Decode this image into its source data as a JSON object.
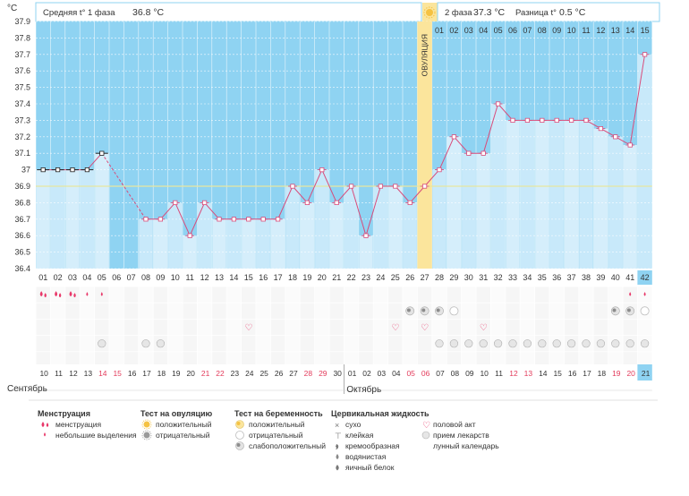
{
  "chart_data": {
    "type": "line",
    "ylabel": "°C",
    "ylim": [
      36.4,
      37.9
    ],
    "y_ticks": [
      "37.9",
      "37.8",
      "37.7",
      "37.6",
      "37.5",
      "37.4",
      "37.3",
      "37.2",
      "37.1",
      "37",
      "36.9",
      "36.8",
      "36.7",
      "36.6",
      "36.5",
      "36.4"
    ],
    "coverline": 36.9,
    "cycle_days": [
      "01",
      "02",
      "03",
      "04",
      "05",
      "06",
      "07",
      "08",
      "09",
      "10",
      "11",
      "12",
      "13",
      "14",
      "15",
      "16",
      "17",
      "18",
      "19",
      "20",
      "21",
      "22",
      "23",
      "24",
      "25",
      "26",
      "27",
      "28",
      "29",
      "30",
      "31",
      "32",
      "33",
      "34",
      "35",
      "36",
      "37",
      "38",
      "39",
      "40",
      "41",
      "42"
    ],
    "phase2_days": [
      "01",
      "02",
      "03",
      "04",
      "05",
      "06",
      "07",
      "08",
      "09",
      "10",
      "11",
      "12",
      "13",
      "14",
      "15"
    ],
    "ovulation_index": 26,
    "ovulation_label": "ОВУЛЯЦИЯ",
    "series": [
      {
        "values": [
          37.0,
          37.0,
          37.0,
          37.0,
          37.1,
          null,
          null,
          36.7,
          36.7,
          36.8,
          36.6,
          36.8,
          36.7,
          36.7,
          36.7,
          36.7,
          36.7,
          36.9,
          36.8,
          37.0,
          36.8,
          36.9,
          36.6,
          36.9,
          36.9,
          36.8,
          36.9,
          37.0,
          37.2,
          37.1,
          37.1,
          37.4,
          37.3,
          37.3,
          37.3,
          37.3,
          37.3,
          37.3,
          37.25,
          37.2,
          37.15,
          37.7
        ],
        "marker_types": [
          "open",
          "open",
          "open",
          "open",
          "open",
          null,
          null,
          "circle",
          "circle",
          "circle",
          "circle",
          "circle",
          "circle",
          "circle",
          "circle",
          "circle",
          "circle",
          "circle",
          "circle",
          "circle",
          "circle",
          "circle",
          "circle",
          "circle",
          "circle",
          "circle",
          "circle",
          "circle",
          "circle",
          "circle",
          "circle",
          "circle",
          "circle",
          "circle",
          "circle",
          "circle",
          "circle",
          "circle",
          "circle",
          "circle",
          "circle",
          "circle"
        ]
      }
    ],
    "dates_sep": [
      "10",
      "11",
      "12",
      "13",
      "14",
      "15",
      "16",
      "17",
      "18",
      "19",
      "20",
      "21",
      "22",
      "23",
      "24",
      "25",
      "26",
      "27",
      "28",
      "29",
      "30"
    ],
    "dates_oct": [
      "01",
      "02",
      "03",
      "04",
      "05",
      "06",
      "07",
      "08",
      "09",
      "10",
      "11",
      "12",
      "13",
      "14",
      "15",
      "16",
      "17",
      "18",
      "19",
      "20",
      "21"
    ],
    "weekend_dates_sep": [
      "14",
      "15",
      "21",
      "22",
      "28",
      "29"
    ],
    "weekend_dates_oct": [
      "05",
      "06",
      "12",
      "13",
      "19",
      "20"
    ],
    "month1": "Сентябрь",
    "month2": "Октябрь",
    "header_phase1_label": "Средняя t° 1 фаза",
    "header_phase1_value": "36.8 °C",
    "header_phase2_label": "2 фаза",
    "header_phase2_value": "37.3 °C",
    "header_diff_label": "Разница t°",
    "header_diff_value": "0.5 °C",
    "rows": {
      "menstruation": [
        2,
        2,
        2,
        1,
        1,
        0,
        0,
        0,
        0,
        0,
        0,
        0,
        0,
        0,
        0,
        0,
        0,
        0,
        0,
        0,
        0,
        0,
        0,
        0,
        0,
        0,
        0,
        0,
        0,
        0,
        0,
        0,
        0,
        0,
        0,
        0,
        0,
        0,
        0,
        0,
        1,
        1
      ],
      "pregnancy_test": [
        0,
        0,
        0,
        0,
        0,
        0,
        0,
        0,
        0,
        0,
        0,
        0,
        0,
        0,
        0,
        0,
        0,
        0,
        0,
        0,
        0,
        0,
        0,
        0,
        0,
        2,
        2,
        2,
        1,
        0,
        0,
        0,
        0,
        0,
        0,
        0,
        0,
        0,
        0,
        2,
        2,
        1
      ],
      "sex": [
        0,
        0,
        0,
        0,
        0,
        0,
        0,
        0,
        0,
        0,
        0,
        0,
        0,
        0,
        1,
        0,
        0,
        0,
        0,
        0,
        0,
        0,
        0,
        0,
        1,
        0,
        1,
        0,
        0,
        0,
        1,
        0,
        0,
        0,
        0,
        0,
        0,
        0,
        0,
        0,
        0,
        0
      ],
      "medication": [
        0,
        0,
        0,
        0,
        1,
        0,
        0,
        1,
        1,
        0,
        0,
        0,
        0,
        0,
        0,
        0,
        0,
        0,
        0,
        0,
        0,
        0,
        0,
        0,
        0,
        0,
        0,
        1,
        1,
        1,
        1,
        1,
        1,
        1,
        1,
        1,
        1,
        1,
        1,
        1,
        1,
        1
      ],
      "moon": [
        0,
        0,
        0,
        0,
        0,
        0,
        0,
        0,
        0,
        0,
        0,
        0,
        0,
        0,
        0,
        0,
        0,
        0,
        0,
        0,
        0,
        0,
        0,
        0,
        0,
        0,
        0,
        1,
        0,
        0,
        0,
        0,
        0,
        0,
        0,
        0,
        0,
        0,
        0,
        0,
        0,
        0
      ]
    },
    "highlight_index": 41
  },
  "legend": {
    "menstruation_title": "Менструация",
    "menstruation_items": [
      "менструация",
      "небольшие выделения"
    ],
    "ovulation_test_title": "Тест на овуляцию",
    "ovulation_test_items": [
      "положительный",
      "отрицательный"
    ],
    "pregnancy_test_title": "Тест на беременность",
    "pregnancy_test_items": [
      "положительный",
      "отрицательный",
      "слабоположительный"
    ],
    "cervical_title": "Цервикальная жидкость",
    "cervical_items": [
      "сухо",
      "клейкая",
      "кремообразная",
      "водянистая",
      "яичный белок"
    ],
    "other_items": [
      "половой акт",
      "прием лекарств",
      "лунный календарь"
    ]
  },
  "colors": {
    "chart_bg_blue": "#8fd3f2",
    "bar_light": "#d5eefb",
    "bar_light_alt": "#c8e9fa",
    "line": "#d94b7a",
    "ovulation": "#fbe59c",
    "coverline": "#e6e6a0",
    "highlight": "#8fd3f2",
    "weekend": "#e33c5c",
    "menstruation": "#e8396a"
  }
}
